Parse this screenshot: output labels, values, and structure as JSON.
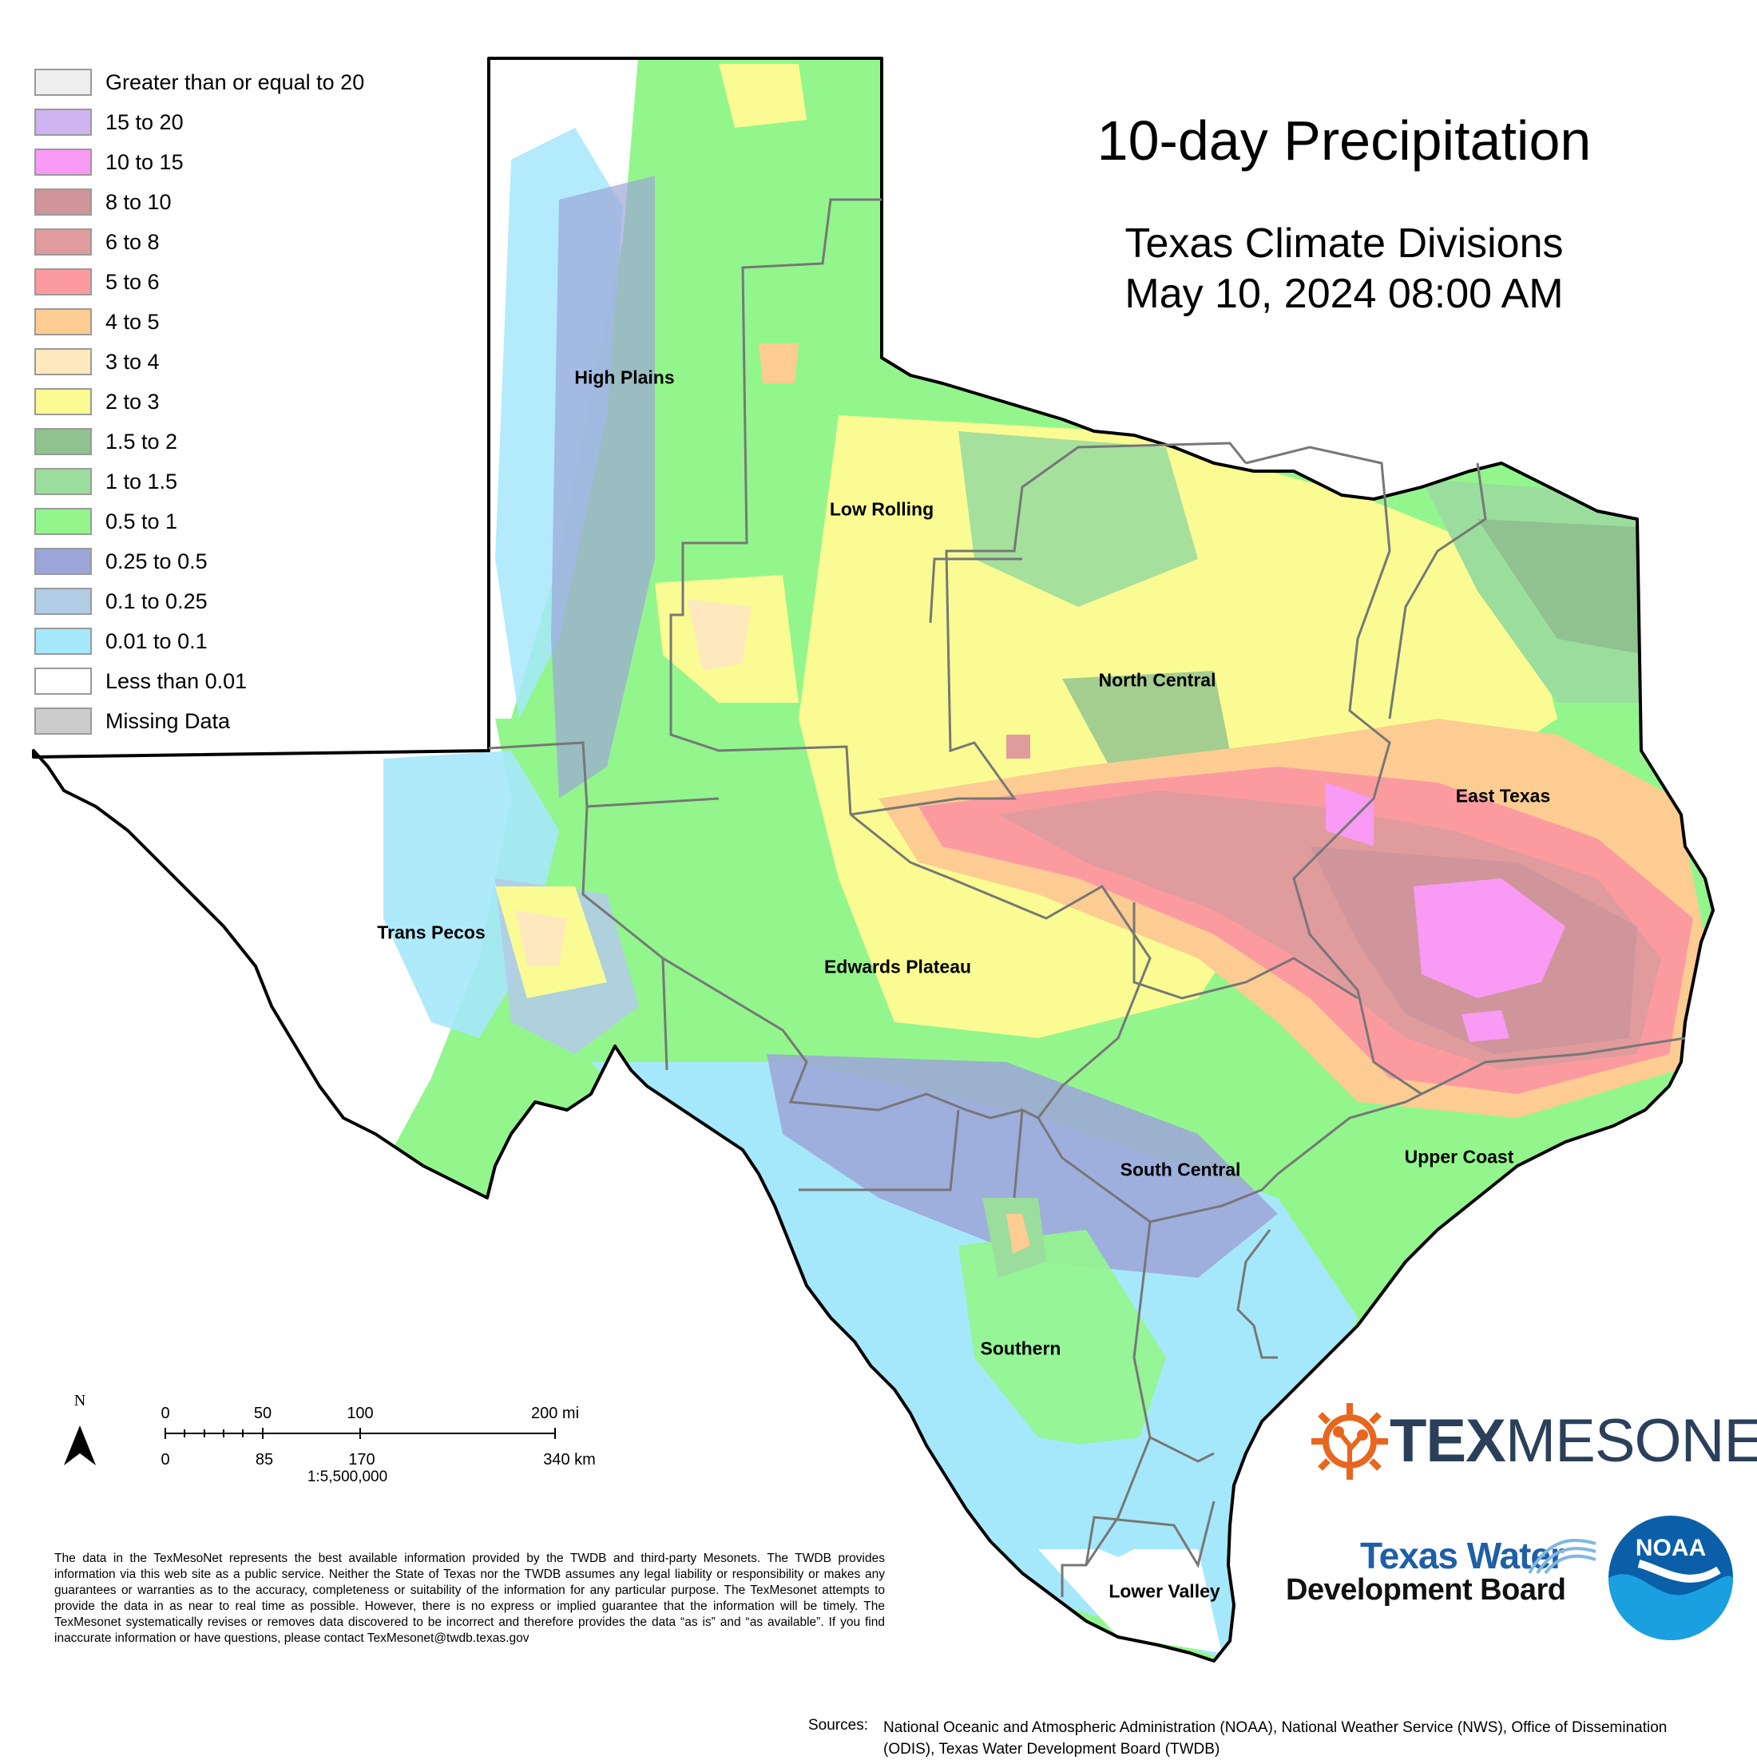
{
  "title": "10-day Precipitation",
  "subtitle_line1": "Texas Climate Divisions",
  "subtitle_line2": "May 10, 2024 08:00 AM",
  "legend": [
    {
      "label": "Greater than or equal to 20",
      "color": "#eeeeee"
    },
    {
      "label": "15 to 20",
      "color": "#cdb4f0"
    },
    {
      "label": "10 to 15",
      "color": "#f99af5"
    },
    {
      "label": "8 to 10",
      "color": "#cf959a"
    },
    {
      "label": "6 to 8",
      "color": "#e09b9d"
    },
    {
      "label": "5 to 6",
      "color": "#fb9ba0"
    },
    {
      "label": "4 to 5",
      "color": "#fccc92"
    },
    {
      "label": "3 to 4",
      "color": "#fde9bd"
    },
    {
      "label": "2 to 3",
      "color": "#fafc93"
    },
    {
      "label": "1.5 to 2",
      "color": "#8fc28e"
    },
    {
      "label": "1 to 1.5",
      "color": "#9bdd9d"
    },
    {
      "label": "0.5 to 1",
      "color": "#93f68c"
    },
    {
      "label": "0.25 to 0.5",
      "color": "#9ca5d8"
    },
    {
      "label": "0.1 to 0.25",
      "color": "#b2cce6"
    },
    {
      "label": "0.01 to 0.1",
      "color": "#a6e8fb"
    },
    {
      "label": "Less than 0.01",
      "color": "#ffffff"
    },
    {
      "label": "Missing Data",
      "color": "#cccccc"
    }
  ],
  "regions": {
    "high_plains": "High Plains",
    "low_rolling": "Low Rolling",
    "north_central": "North Central",
    "east_texas": "East Texas",
    "trans_pecos": "Trans Pecos",
    "edwards_plateau": "Edwards Plateau",
    "south_central": "South Central",
    "upper_coast": "Upper Coast",
    "southern": "Southern",
    "lower_valley": "Lower Valley"
  },
  "scale": {
    "north": "N",
    "mi_ticks": [
      "0",
      "50",
      "100",
      "200 mi"
    ],
    "km_ticks": [
      "0",
      "85",
      "170",
      "340 km"
    ],
    "ratio": "1:5,500,000"
  },
  "logos": {
    "texmesonet_a": "TEX",
    "texmesonet_b": "MESONET",
    "twdb_line1": "Texas Water",
    "twdb_line2": "Development Board",
    "noaa": "NOAA"
  },
  "disclaimer": "The data in the TexMesoNet represents the best available information provided by the TWDB and third-party Mesonets. The TWDB provides information via this web site as a public service. Neither the State of Texas nor the TWDB assumes any legal liability or responsibility or makes any guarantees or warranties as to the accuracy, completeness or suitability of the information for any particular purpose. The TexMesonet attempts to provide the data in as near to real time as possible. However, there is no express or implied guarantee that the information will be timely. The TexMesonet systematically revises or removes data discovered to be incorrect and therefore provides the data “as is” and “as available”. If you find inaccurate information or have questions, please contact TexMesonet@twdb.texas.gov",
  "sources_label": "Sources:",
  "sources_text": "National Oceanic and Atmospheric Administration (NOAA), National Weather Service (NWS), Office of Dissemination (ODIS), Texas Water Development Board (TWDB)"
}
